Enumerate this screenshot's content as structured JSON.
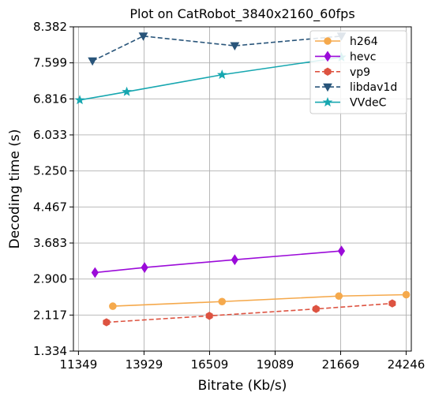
{
  "chart_data": {
    "type": "line",
    "title": "Plot on CatRobot_3840x2160_60fps",
    "xlabel": "Bitrate (Kb/s)",
    "ylabel": "Decoding time (s)",
    "xlim": [
      11150,
      24450
    ],
    "ylim": [
      1.334,
      8.382
    ],
    "xticks": [
      11349,
      13929,
      16509,
      19089,
      21669,
      24246
    ],
    "yticks": [
      1.334,
      2.117,
      2.9,
      3.683,
      4.467,
      5.25,
      6.033,
      6.816,
      7.599,
      8.382
    ],
    "xtick_labels": [
      "11349",
      "13929",
      "16509",
      "19089",
      "21669",
      "24246"
    ],
    "ytick_labels": [
      "1.334",
      "2.117",
      "2.900",
      "3.683",
      "4.467",
      "5.250",
      "6.033",
      "6.816",
      "7.599",
      "8.382"
    ],
    "grid": true,
    "legend_position": "top-right",
    "series": [
      {
        "name": "h264",
        "color": "#f5a94c",
        "dash": "solid",
        "marker": "circle",
        "x": [
          12700,
          17000,
          21600,
          24250
        ],
        "y": [
          2.31,
          2.41,
          2.53,
          2.56
        ]
      },
      {
        "name": "hevc",
        "color": "#9b0bd9",
        "dash": "solid",
        "marker": "diamond",
        "x": [
          12000,
          13950,
          17500,
          21700
        ],
        "y": [
          3.04,
          3.15,
          3.32,
          3.51
        ]
      },
      {
        "name": "vp9",
        "color": "#dd5341",
        "dash": "dashed",
        "marker": "hexagon",
        "x": [
          12450,
          16500,
          20700,
          23700
        ],
        "y": [
          1.96,
          2.1,
          2.25,
          2.37
        ]
      },
      {
        "name": "libdav1d",
        "color": "#29557a",
        "dash": "dashed",
        "marker": "triangle-down",
        "x": [
          11900,
          13900,
          17500,
          21700
        ],
        "y": [
          7.64,
          8.18,
          7.97,
          8.18
        ]
      },
      {
        "name": "VVdeC",
        "color": "#17a7b0",
        "dash": "solid",
        "marker": "star",
        "x": [
          11400,
          13250,
          17000,
          21700
        ],
        "y": [
          6.79,
          6.97,
          7.34,
          7.72
        ]
      }
    ]
  }
}
